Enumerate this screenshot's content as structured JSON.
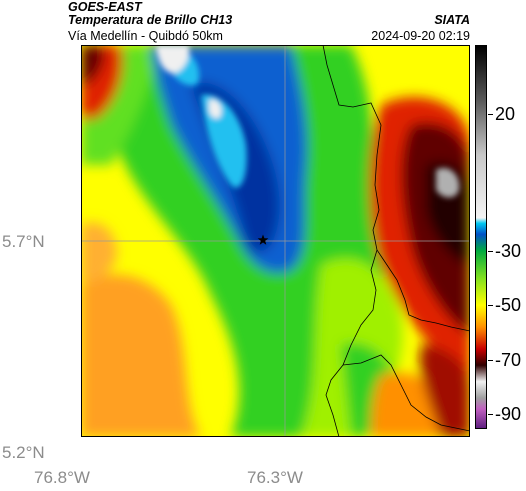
{
  "header": {
    "title": "GOES-EAST",
    "subtitle": "Temperatura de Brillo CH13",
    "route": "Vía Medellín - Quibdó 50km",
    "org": "SIATA",
    "datetime": "2024-09-20 02:19"
  },
  "axes": {
    "lat_labels": [
      "5.7°N",
      "5.2°N"
    ],
    "lon_labels": [
      "76.8°W",
      "76.3°W"
    ]
  },
  "colorbar": {
    "labels": [
      "20",
      "-30",
      "-50",
      "-70",
      "-90"
    ],
    "label_values": [
      20,
      -30,
      -50,
      -70,
      -90
    ],
    "range": [
      -95,
      45
    ],
    "stops": [
      {
        "v": 45,
        "c": "#000000"
      },
      {
        "v": 25,
        "c": "#5a5a5a"
      },
      {
        "v": 5,
        "c": "#c8c8c8"
      },
      {
        "v": -18,
        "c": "#f4f4f4"
      },
      {
        "v": -20,
        "c": "#00c8f0"
      },
      {
        "v": -24,
        "c": "#0050c8"
      },
      {
        "v": -30,
        "c": "#00aa40"
      },
      {
        "v": -40,
        "c": "#80e020"
      },
      {
        "v": -50,
        "c": "#ffff00"
      },
      {
        "v": -58,
        "c": "#ff9000"
      },
      {
        "v": -66,
        "c": "#c80000"
      },
      {
        "v": -72,
        "c": "#300000"
      },
      {
        "v": -78,
        "c": "#f0f0f0"
      },
      {
        "v": -84,
        "c": "#a0a0a0"
      },
      {
        "v": -88,
        "c": "#c060c0"
      },
      {
        "v": -95,
        "c": "#602080"
      }
    ]
  },
  "map_colors": {
    "yellow": "#ffff00",
    "orange_light": "#ffd040",
    "orange": "#ffa020",
    "green": "#30d020",
    "green_light": "#a0f000",
    "blue": "#1060d0",
    "blue_dark": "#0030a0",
    "cyan": "#20c0f0",
    "red": "#e02000",
    "dark_red": "#600000",
    "black_red": "#200000",
    "gray": "#808080",
    "white": "#f0f0f0"
  }
}
